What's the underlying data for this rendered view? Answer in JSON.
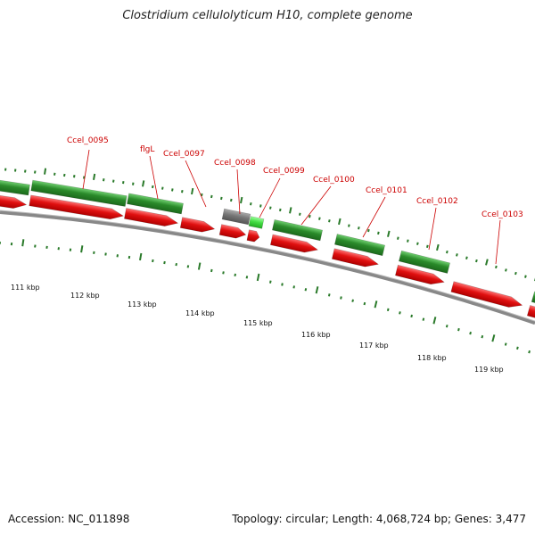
{
  "title": "Clostridium cellulolyticum H10, complete genome",
  "footer": {
    "accession": "Accession: NC_011898",
    "summary": "Topology: circular; Length: 4,068,724 bp; Genes: 3,477"
  },
  "colors": {
    "forward_gene": "#2a8a2a",
    "reverse_gene": "#e01010",
    "other_gene": "#777777",
    "highlight_gene": "#44dd44",
    "backbone": "#888888",
    "ticks": "#2a7a2a",
    "label": "#cc0000"
  },
  "scale_labels": [
    "111 kbp",
    "112 kbp",
    "113 kbp",
    "114 kbp",
    "115 kbp",
    "116 kbp",
    "117 kbp",
    "118 kbp",
    "119 kbp"
  ],
  "gene_labels": [
    "Ccel_0095",
    "flgL",
    "Ccel_0097",
    "Ccel_0098",
    "Ccel_0099",
    "Ccel_0100",
    "Ccel_0101",
    "Ccel_0102",
    "Ccel_0103"
  ]
}
